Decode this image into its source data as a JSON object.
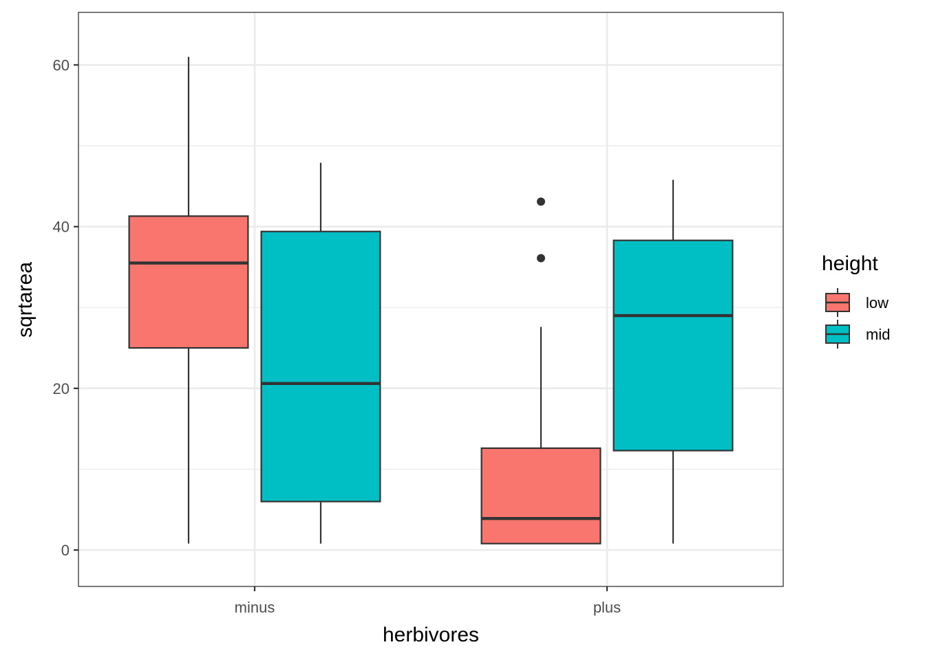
{
  "chart_data": {
    "type": "boxplot",
    "xlabel": "herbivores",
    "ylabel": "sqrtarea",
    "categories": [
      "minus",
      "plus"
    ],
    "ylim": [
      -4.5,
      66.5
    ],
    "y_ticks": [
      0,
      20,
      40,
      60
    ],
    "grid": true,
    "legend": {
      "title": "height",
      "position": "right"
    },
    "series": [
      {
        "name": "low",
        "color": "#F8766D",
        "boxes": [
          {
            "category": "minus",
            "min": 0.8,
            "q1": 25.0,
            "median": 35.5,
            "q3": 41.3,
            "max": 61.0,
            "outliers": []
          },
          {
            "category": "plus",
            "min": 0.8,
            "q1": 0.8,
            "median": 3.9,
            "q3": 12.6,
            "max": 27.6,
            "outliers": [
              36.1,
              43.1
            ]
          }
        ]
      },
      {
        "name": "mid",
        "color": "#00BFC4",
        "boxes": [
          {
            "category": "minus",
            "min": 0.8,
            "q1": 6.0,
            "median": 20.6,
            "q3": 39.4,
            "max": 47.9,
            "outliers": []
          },
          {
            "category": "plus",
            "min": 0.8,
            "q1": 12.3,
            "median": 29.0,
            "q3": 38.3,
            "max": 45.8,
            "outliers": []
          }
        ]
      }
    ]
  }
}
